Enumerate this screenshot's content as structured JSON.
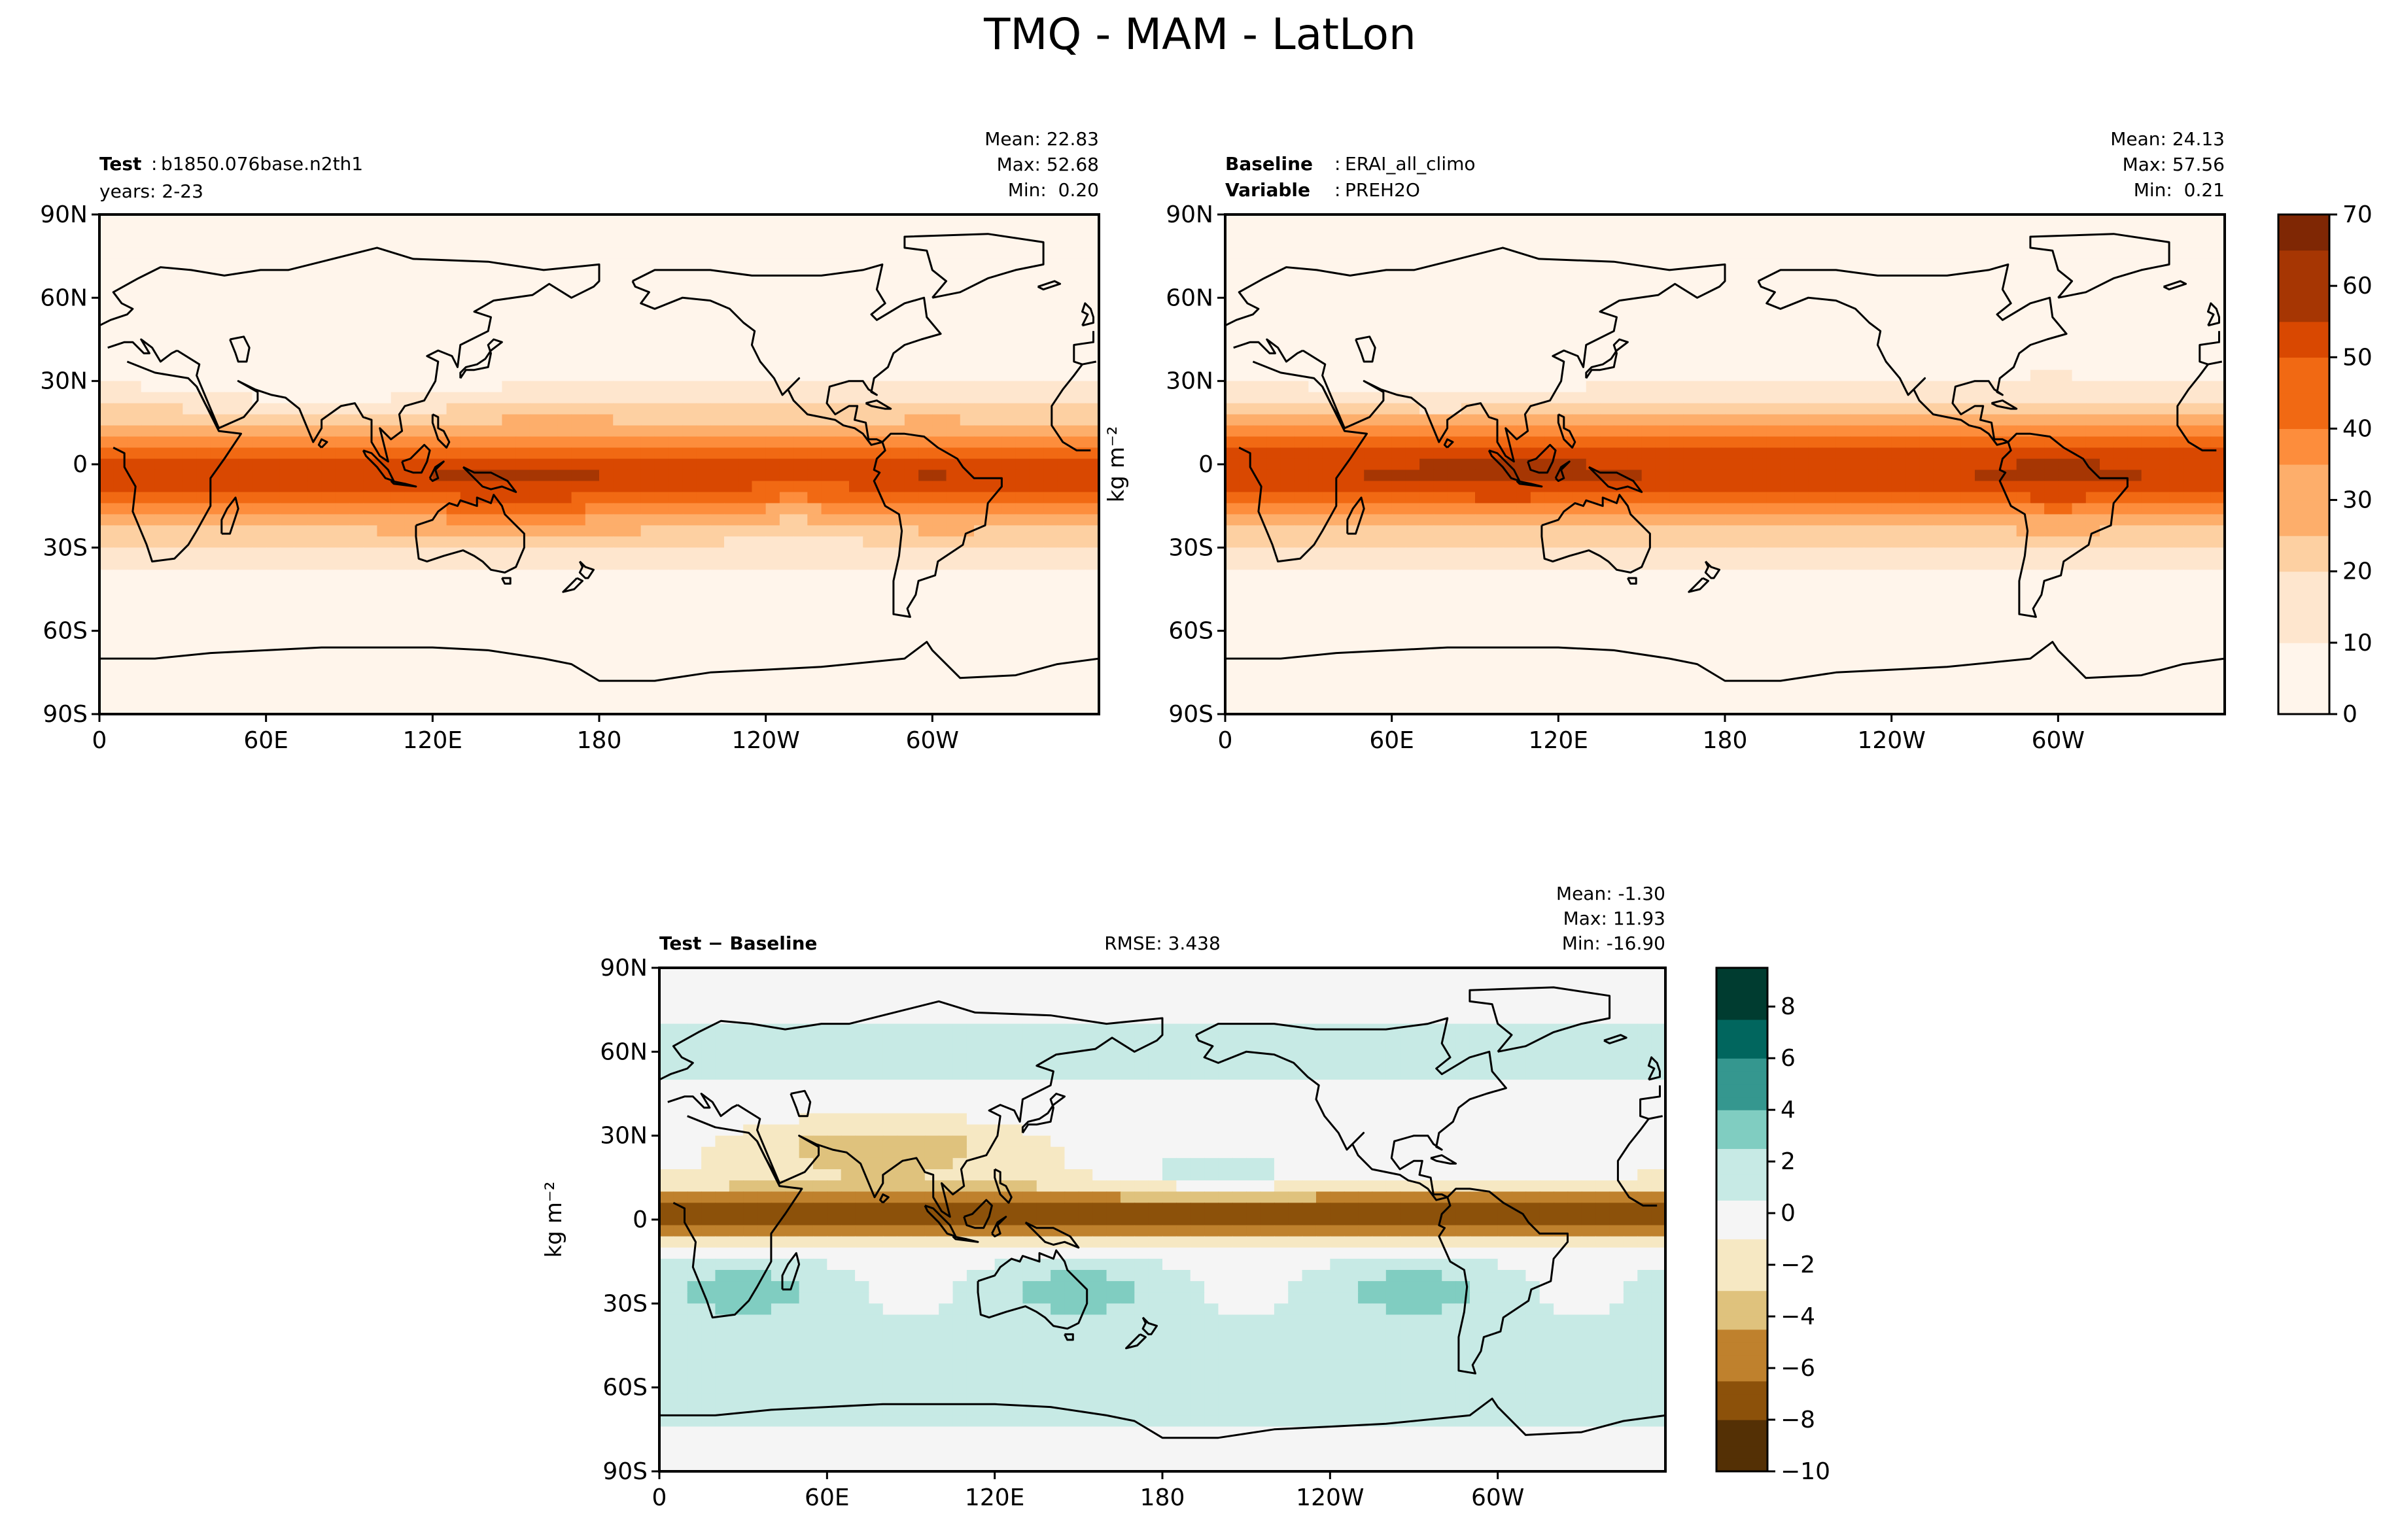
{
  "figure": {
    "title": "TMQ - MAM - LatLon",
    "units_label": "kg m⁻²"
  },
  "colors": {
    "oranges": [
      "#fff5eb",
      "#fee6ce",
      "#fdd0a2",
      "#fdae6b",
      "#fd8d3c",
      "#f16913",
      "#d94801",
      "#a63603",
      "#7f2704"
    ],
    "brbg": [
      "#543005",
      "#8c510a",
      "#bf812d",
      "#dfc27d",
      "#f6e8c3",
      "#f5f5f5",
      "#c7eae5",
      "#80cdc1",
      "#35978f",
      "#01665e",
      "#003c30"
    ],
    "coastline": "#000000"
  },
  "chart_data": [
    {
      "type": "heatmap",
      "panel": "test",
      "left_label_bold": "Test",
      "left_label_value": "b1850.076base.n2th1",
      "left_label_line2": "years: 2-23",
      "stats": [
        "Mean: 22.83",
        "Max: 52.68",
        "Min:  0.20"
      ],
      "xticks": [
        "0",
        "60E",
        "120E",
        "180",
        "120W",
        "60W"
      ],
      "yticks": [
        "90N",
        "60N",
        "30N",
        "0",
        "30S",
        "60S",
        "90S"
      ],
      "colormap": "oranges",
      "clim": [
        0,
        70
      ],
      "grid": false
    },
    {
      "type": "heatmap",
      "panel": "baseline",
      "left_label_bold": "Baseline",
      "left_label_value": "ERAI_all_climo",
      "left_label_bold2": "Variable",
      "left_label_value2": "PREH2O",
      "stats": [
        "Mean: 24.13",
        "Max: 57.56",
        "Min:  0.21"
      ],
      "xticks": [
        "0",
        "60E",
        "120E",
        "180",
        "120W",
        "60W"
      ],
      "yticks": [
        "90N",
        "60N",
        "30N",
        "0",
        "30S",
        "60S",
        "90S"
      ],
      "ylabel": "kg m⁻²",
      "colormap": "oranges",
      "clim": [
        0,
        70
      ],
      "colorbar_ticks": [
        "0",
        "10",
        "20",
        "30",
        "40",
        "50",
        "60",
        "70"
      ],
      "grid": false
    },
    {
      "type": "heatmap",
      "panel": "difference",
      "left_label_bold": "Test − Baseline",
      "center_label": "RMSE: 3.438",
      "stats": [
        "Mean: -1.30",
        "Max: 11.93",
        "Min: -16.90"
      ],
      "xticks": [
        "0",
        "60E",
        "120E",
        "180",
        "120W",
        "60W"
      ],
      "yticks": [
        "90N",
        "60N",
        "30N",
        "0",
        "30S",
        "60S",
        "90S"
      ],
      "ylabel": "kg m⁻²",
      "colormap": "brbg",
      "clim": [
        -10,
        9.5
      ],
      "colorbar_ticks": [
        "−10",
        "−8",
        "−6",
        "−4",
        "−2",
        "0",
        "2",
        "4",
        "6",
        "8"
      ],
      "grid": false
    }
  ]
}
